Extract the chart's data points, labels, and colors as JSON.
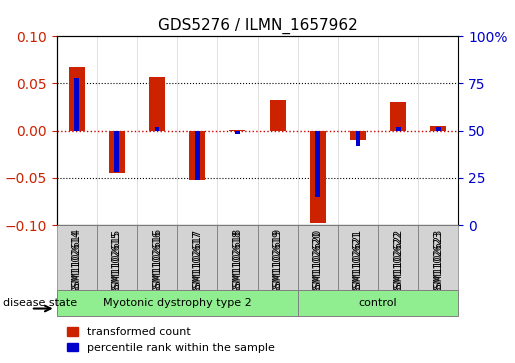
{
  "title": "GDS5276 / ILMN_1657962",
  "categories": [
    "GSM1102614",
    "GSM1102615",
    "GSM1102616",
    "GSM1102617",
    "GSM1102618",
    "GSM1102619",
    "GSM1102620",
    "GSM1102621",
    "GSM1102622",
    "GSM1102623"
  ],
  "red_values": [
    0.068,
    -0.045,
    0.057,
    -0.052,
    0.001,
    0.032,
    -0.098,
    -0.01,
    0.03,
    0.005
  ],
  "blue_values": [
    0.78,
    0.28,
    0.52,
    0.24,
    0.48,
    0.5,
    0.15,
    0.42,
    0.52,
    0.52
  ],
  "ylim_left": [
    -0.1,
    0.1
  ],
  "ylim_right": [
    0,
    100
  ],
  "yticks_left": [
    -0.1,
    -0.05,
    0.0,
    0.05,
    0.1
  ],
  "yticks_right": [
    0,
    25,
    50,
    75,
    100
  ],
  "group1_label": "Myotonic dystrophy type 2",
  "group1_range": [
    0,
    6
  ],
  "group2_label": "control",
  "group2_range": [
    6,
    10
  ],
  "disease_state_label": "disease state",
  "legend_red": "transformed count",
  "legend_blue": "percentile rank within the sample",
  "red_color": "#CC2200",
  "blue_color": "#0000CC",
  "bar_width": 0.4,
  "blue_bar_width": 0.12,
  "group1_color": "#90EE90",
  "group2_color": "#90EE90",
  "tick_color_left": "#CC2200",
  "tick_color_right": "#0000CC",
  "background_color": "#ffffff",
  "grid_color": "#000000",
  "zero_line_color": "#CC0000"
}
